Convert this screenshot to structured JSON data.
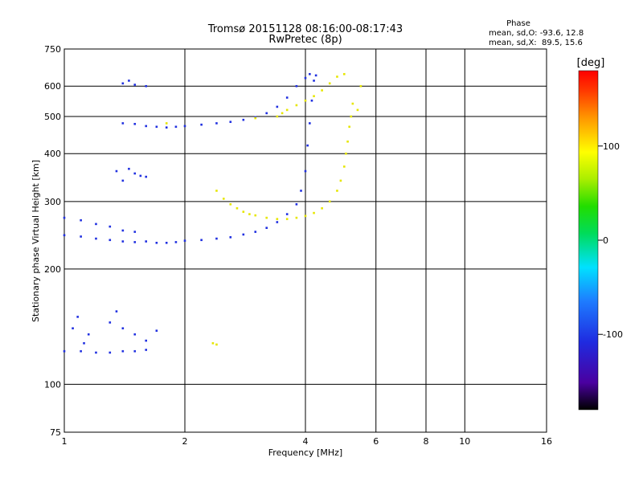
{
  "chart_data": {
    "type": "scatter",
    "title": "Tromsø 20151128 08:16:00-08:17:43",
    "subtitle": "RwPretec (8p)",
    "xlabel": "Frequency [MHz]",
    "ylabel": "Stationary phase Virtual Height [km]",
    "x_scale": "log2",
    "y_scale": "log",
    "xlim": [
      1,
      16
    ],
    "ylim": [
      75,
      750
    ],
    "x_ticks": [
      1,
      2,
      4,
      6,
      8,
      10,
      16
    ],
    "x_tick_labels": [
      "1",
      "2",
      "4",
      "6",
      "8",
      "10",
      "16"
    ],
    "x_gridlines": [
      2,
      4,
      6,
      8,
      10
    ],
    "y_ticks": [
      75,
      100,
      200,
      300,
      400,
      500,
      600,
      750
    ],
    "y_tick_labels": [
      "75",
      "100",
      "200",
      "300",
      "400",
      "500",
      "600",
      "750"
    ],
    "y_gridlines": [
      100,
      200,
      300,
      400,
      500,
      600
    ],
    "grid": true,
    "phase_info": {
      "header": "Phase",
      "line_o": "mean, sd,O: -93.6, 12.8",
      "line_x": "mean, sd,X:  89.5, 15.6"
    },
    "colorbar": {
      "unit": "[deg]",
      "range": [
        -180,
        180
      ],
      "tick_values": [
        100,
        0,
        -100
      ],
      "tick_labels": [
        "100",
        "0",
        "-100"
      ]
    },
    "series": [
      {
        "points": [
          [
            1.0,
            272
          ],
          [
            1.1,
            268
          ],
          [
            1.2,
            262
          ],
          [
            1.3,
            258
          ],
          [
            1.4,
            252
          ],
          [
            1.5,
            250
          ],
          [
            1.0,
            245
          ],
          [
            1.1,
            243
          ],
          [
            1.2,
            240
          ],
          [
            1.3,
            238
          ],
          [
            1.4,
            236
          ],
          [
            1.5,
            235
          ],
          [
            1.6,
            236
          ],
          [
            1.7,
            234
          ],
          [
            1.8,
            234
          ],
          [
            1.9,
            235
          ],
          [
            2.0,
            237
          ],
          [
            2.2,
            238
          ],
          [
            2.4,
            240
          ],
          [
            2.6,
            242
          ],
          [
            2.8,
            246
          ],
          [
            3.0,
            250
          ],
          [
            3.2,
            256
          ],
          [
            3.4,
            265
          ],
          [
            3.6,
            278
          ],
          [
            3.8,
            295
          ],
          [
            3.9,
            320
          ],
          [
            4.0,
            360
          ],
          [
            4.05,
            420
          ],
          [
            4.1,
            480
          ],
          [
            4.15,
            550
          ],
          [
            4.2,
            620
          ],
          [
            4.25,
            640
          ],
          [
            1.0,
            122
          ],
          [
            1.1,
            122
          ],
          [
            1.2,
            121
          ],
          [
            1.3,
            121
          ],
          [
            1.4,
            122
          ],
          [
            1.5,
            122
          ],
          [
            1.6,
            123
          ],
          [
            1.05,
            140
          ],
          [
            1.15,
            135
          ],
          [
            1.3,
            145
          ],
          [
            1.35,
            155
          ],
          [
            1.4,
            140
          ],
          [
            1.5,
            135
          ],
          [
            1.6,
            130
          ],
          [
            1.7,
            138
          ],
          [
            1.08,
            150
          ],
          [
            1.12,
            128
          ],
          [
            1.4,
            480
          ],
          [
            1.5,
            478
          ],
          [
            1.6,
            472
          ],
          [
            1.7,
            470
          ],
          [
            1.8,
            468
          ],
          [
            1.9,
            470
          ],
          [
            2.0,
            472
          ],
          [
            2.2,
            476
          ],
          [
            2.4,
            480
          ],
          [
            2.6,
            484
          ],
          [
            2.8,
            490
          ],
          [
            3.0,
            498
          ],
          [
            3.2,
            510
          ],
          [
            3.4,
            530
          ],
          [
            3.6,
            560
          ],
          [
            3.8,
            600
          ],
          [
            4.0,
            630
          ],
          [
            4.1,
            645
          ],
          [
            1.35,
            360
          ],
          [
            1.45,
            365
          ],
          [
            1.55,
            350
          ],
          [
            1.4,
            340
          ],
          [
            1.5,
            355
          ],
          [
            1.6,
            348
          ],
          [
            1.4,
            610
          ],
          [
            1.5,
            605
          ],
          [
            1.6,
            600
          ],
          [
            1.45,
            620
          ]
        ]
      },
      {
        "points": [
          [
            2.4,
            320
          ],
          [
            2.5,
            305
          ],
          [
            2.6,
            295
          ],
          [
            2.7,
            288
          ],
          [
            2.8,
            282
          ],
          [
            2.9,
            278
          ],
          [
            3.0,
            276
          ],
          [
            3.2,
            272
          ],
          [
            3.4,
            270
          ],
          [
            3.6,
            270
          ],
          [
            3.8,
            272
          ],
          [
            4.0,
            275
          ],
          [
            4.2,
            280
          ],
          [
            4.4,
            288
          ],
          [
            4.6,
            300
          ],
          [
            4.8,
            320
          ],
          [
            4.9,
            340
          ],
          [
            5.0,
            370
          ],
          [
            5.05,
            400
          ],
          [
            5.1,
            430
          ],
          [
            5.15,
            470
          ],
          [
            5.2,
            500
          ],
          [
            5.25,
            540
          ],
          [
            3.4,
            500
          ],
          [
            3.5,
            510
          ],
          [
            3.6,
            520
          ],
          [
            3.8,
            535
          ],
          [
            4.0,
            550
          ],
          [
            4.2,
            565
          ],
          [
            4.4,
            585
          ],
          [
            4.6,
            610
          ],
          [
            4.8,
            635
          ],
          [
            5.0,
            645
          ],
          [
            2.35,
            128
          ],
          [
            2.4,
            127
          ],
          [
            1.8,
            480
          ],
          [
            3.0,
            495
          ],
          [
            5.4,
            520
          ],
          [
            5.5,
            600
          ]
        ]
      }
    ]
  }
}
